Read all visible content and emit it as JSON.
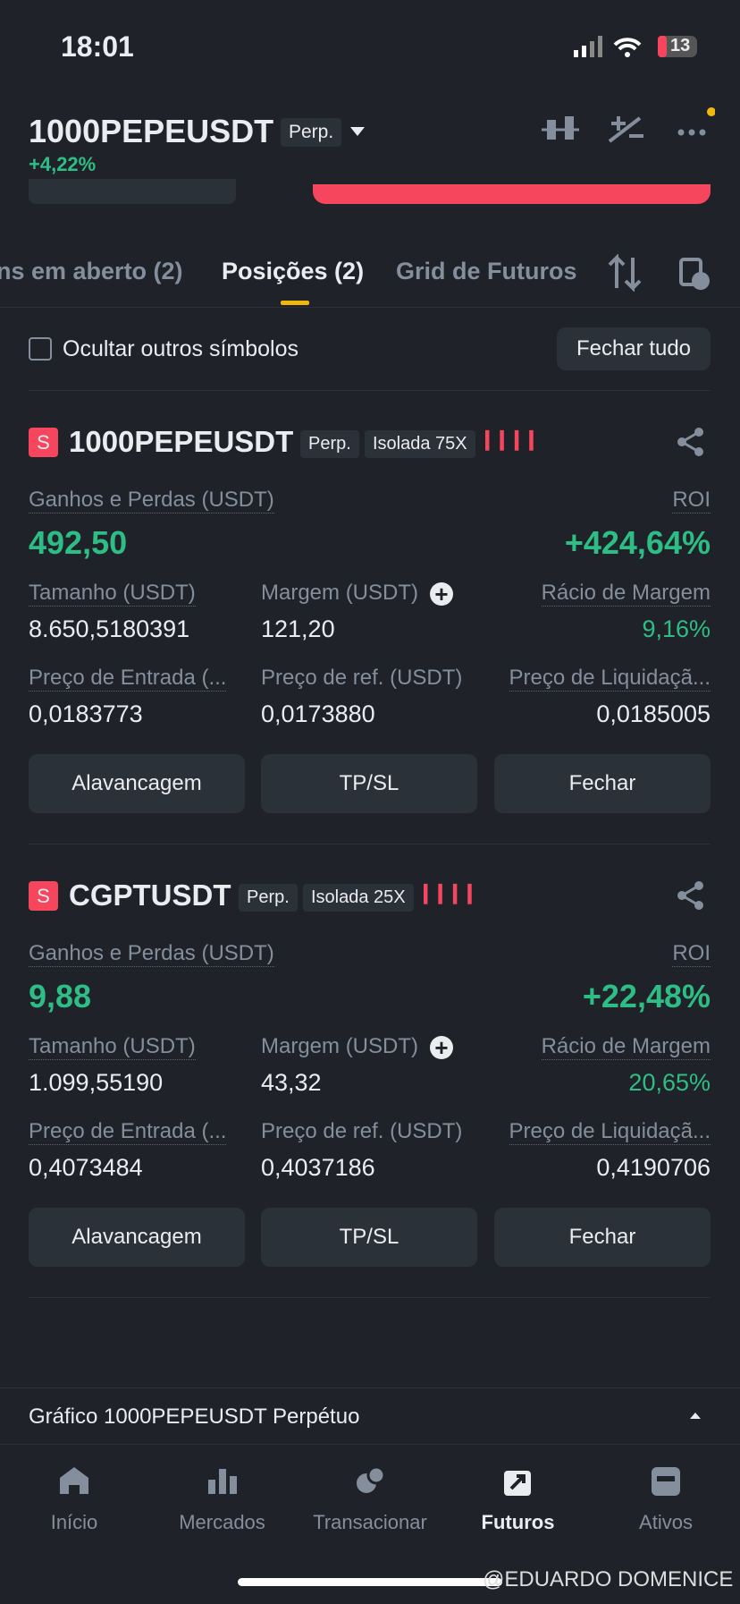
{
  "status": {
    "time": "18:01",
    "battery": "13"
  },
  "header": {
    "symbol": "1000PEPEUSDT",
    "tag": "Perp.",
    "change": "+4,22%"
  },
  "tabs": [
    "ns em aberto (2)",
    "Posições (2)",
    "Grid de Futuros"
  ],
  "filter": {
    "checkbox_label": "Ocultar outros símbolos",
    "close_all": "Fechar tudo"
  },
  "positions": [
    {
      "side": "S",
      "symbol": "1000PEPEUSDT",
      "tag": "Perp.",
      "mode": "Isolada 75X",
      "pnl_label": "Ganhos e Perdas (USDT)",
      "pnl": "492,50",
      "roi_label": "ROI",
      "roi": "+424,64%",
      "fields": [
        {
          "label": "Tamanho (USDT)",
          "value": "8.650,5180391"
        },
        {
          "label": "Margem (USDT)",
          "value": "121,20"
        },
        {
          "label": "Rácio de Margem",
          "value": "9,16%"
        },
        {
          "label": "Preço de Entrada (...",
          "value": "0,0183773"
        },
        {
          "label": "Preço de ref. (USDT)",
          "value": "0,0173880"
        },
        {
          "label": "Preço de Liquidaçã...",
          "value": "0,0185005"
        }
      ],
      "buttons": [
        "Alavancagem",
        "TP/SL",
        "Fechar"
      ]
    },
    {
      "side": "S",
      "symbol": "CGPTUSDT",
      "tag": "Perp.",
      "mode": "Isolada 25X",
      "pnl_label": "Ganhos e Perdas (USDT)",
      "pnl": "9,88",
      "roi_label": "ROI",
      "roi": "+22,48%",
      "fields": [
        {
          "label": "Tamanho (USDT)",
          "value": "1.099,55190"
        },
        {
          "label": "Margem (USDT)",
          "value": "43,32"
        },
        {
          "label": "Rácio de Margem",
          "value": "20,65%"
        },
        {
          "label": "Preço de Entrada (...",
          "value": "0,4073484"
        },
        {
          "label": "Preço de ref. (USDT)",
          "value": "0,4037186"
        },
        {
          "label": "Preço de Liquidaçã...",
          "value": "0,4190706"
        }
      ],
      "buttons": [
        "Alavancagem",
        "TP/SL",
        "Fechar"
      ]
    }
  ],
  "footer": {
    "chart_link": "Gráfico 1000PEPEUSDT Perpétuo"
  },
  "nav": [
    "Início",
    "Mercados",
    "Transacionar",
    "Futuros",
    "Ativos"
  ],
  "watermark": "@EDUARDO DOMENICE"
}
